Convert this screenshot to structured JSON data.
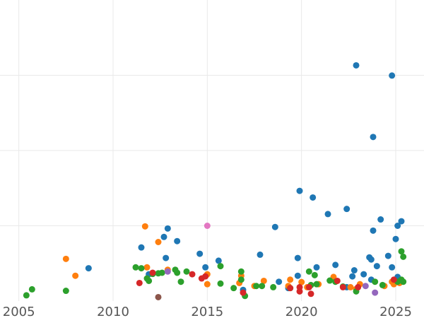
{
  "chart_data": {
    "type": "scatter",
    "title": "",
    "xlabel": "",
    "ylabel": "",
    "xlim": [
      2004.0,
      2026.5
    ],
    "ylim": [
      0,
      100
    ],
    "x_ticks": [
      2005,
      2010,
      2015,
      2020,
      2025
    ],
    "y_grid": [
      25,
      50,
      75
    ],
    "grid": true,
    "legend": "none",
    "x_tick_labels": [
      "2005",
      "2010",
      "2015",
      "2020",
      "2025"
    ],
    "series": [
      {
        "color": "#1f77b4",
        "points": [
          [
            2008.7,
            10.9
          ],
          [
            2011.5,
            17.8
          ],
          [
            2011.9,
            8.9
          ],
          [
            2012.8,
            14.3
          ],
          [
            2012.9,
            24.1
          ],
          [
            2012.7,
            21.3
          ],
          [
            2013.4,
            19.9
          ],
          [
            2014.6,
            15.7
          ],
          [
            2014.9,
            11.2
          ],
          [
            2015.6,
            13.4
          ],
          [
            2016.9,
            3.7
          ],
          [
            2017.8,
            15.4
          ],
          [
            2018.6,
            24.6
          ],
          [
            2018.8,
            6.4
          ],
          [
            2019.3,
            4.3
          ],
          [
            2019.8,
            14.3
          ],
          [
            2019.8,
            8.4
          ],
          [
            2019.9,
            36.6
          ],
          [
            2020.6,
            34.4
          ],
          [
            2020.8,
            11.2
          ],
          [
            2021.4,
            28.9
          ],
          [
            2021.8,
            12.0
          ],
          [
            2022.4,
            30.6
          ],
          [
            2022.4,
            4.6
          ],
          [
            2022.8,
            10.2
          ],
          [
            2022.7,
            8.2
          ],
          [
            2022.9,
            78.3
          ],
          [
            2023.3,
            8.9
          ],
          [
            2023.6,
            14.5
          ],
          [
            2023.7,
            13.8
          ],
          [
            2023.7,
            7.1
          ],
          [
            2023.8,
            23.4
          ],
          [
            2023.8,
            54.5
          ],
          [
            2024.0,
            11.6
          ],
          [
            2024.2,
            27.1
          ],
          [
            2024.6,
            15.0
          ],
          [
            2024.8,
            11.2
          ],
          [
            2024.8,
            74.9
          ],
          [
            2025.0,
            20.6
          ],
          [
            2025.1,
            25.0
          ],
          [
            2025.1,
            8.0
          ],
          [
            2025.3,
            26.5
          ]
        ]
      },
      {
        "color": "#ff7f0e",
        "points": [
          [
            2007.5,
            14.0
          ],
          [
            2008.0,
            8.4
          ],
          [
            2011.7,
            24.8
          ],
          [
            2011.8,
            11.2
          ],
          [
            2012.4,
            19.6
          ],
          [
            2012.9,
            10.4
          ],
          [
            2015.0,
            8.9
          ],
          [
            2015.0,
            5.6
          ],
          [
            2016.7,
            6.0
          ],
          [
            2016.8,
            8.4
          ],
          [
            2017.5,
            5.0
          ],
          [
            2018.0,
            6.7
          ],
          [
            2019.4,
            7.1
          ],
          [
            2019.3,
            5.0
          ],
          [
            2020.0,
            6.3
          ],
          [
            2020.3,
            4.6
          ],
          [
            2020.9,
            5.6
          ],
          [
            2021.7,
            8.0
          ],
          [
            2022.6,
            4.6
          ],
          [
            2022.9,
            4.0
          ],
          [
            2023.1,
            5.6
          ],
          [
            2024.4,
            5.0
          ],
          [
            2024.8,
            6.4
          ],
          [
            2024.9,
            5.6
          ],
          [
            2025.2,
            6.0
          ]
        ]
      },
      {
        "color": "#2ca02c",
        "points": [
          [
            2005.4,
            1.9
          ],
          [
            2005.7,
            3.9
          ],
          [
            2007.5,
            3.4
          ],
          [
            2011.2,
            11.2
          ],
          [
            2011.5,
            10.9
          ],
          [
            2011.8,
            7.5
          ],
          [
            2011.9,
            6.7
          ],
          [
            2012.1,
            9.0
          ],
          [
            2012.4,
            9.2
          ],
          [
            2012.6,
            9.4
          ],
          [
            2013.3,
            10.4
          ],
          [
            2013.4,
            9.4
          ],
          [
            2013.6,
            6.4
          ],
          [
            2013.9,
            9.8
          ],
          [
            2015.7,
            5.8
          ],
          [
            2015.7,
            11.6
          ],
          [
            2016.4,
            4.3
          ],
          [
            2016.8,
            7.1
          ],
          [
            2016.8,
            9.8
          ],
          [
            2017.0,
            1.7
          ],
          [
            2017.6,
            5.0
          ],
          [
            2017.9,
            5.0
          ],
          [
            2018.5,
            4.6
          ],
          [
            2019.4,
            4.3
          ],
          [
            2020.4,
            9.8
          ],
          [
            2020.5,
            5.3
          ],
          [
            2020.7,
            8.6
          ],
          [
            2020.8,
            5.6
          ],
          [
            2021.5,
            6.8
          ],
          [
            2021.8,
            6.4
          ],
          [
            2022.2,
            4.8
          ],
          [
            2022.9,
            3.2
          ],
          [
            2023.9,
            6.4
          ],
          [
            2024.3,
            5.3
          ],
          [
            2025.1,
            6.4
          ],
          [
            2025.3,
            16.5
          ],
          [
            2025.3,
            7.1
          ],
          [
            2025.4,
            6.4
          ],
          [
            2025.4,
            14.7
          ]
        ]
      },
      {
        "color": "#d62728",
        "points": [
          [
            2011.4,
            6.0
          ],
          [
            2012.1,
            9.4
          ],
          [
            2014.2,
            8.9
          ],
          [
            2014.7,
            7.5
          ],
          [
            2014.9,
            8.2
          ],
          [
            2016.9,
            2.8
          ],
          [
            2019.4,
            4.3
          ],
          [
            2019.9,
            3.2
          ],
          [
            2019.9,
            4.6
          ],
          [
            2020.5,
            2.4
          ],
          [
            2020.4,
            4.6
          ],
          [
            2021.9,
            6.7
          ],
          [
            2022.2,
            4.6
          ],
          [
            2023.0,
            4.6
          ],
          [
            2024.9,
            7.1
          ]
        ]
      },
      {
        "color": "#9467bd",
        "points": [
          [
            2012.9,
            9.8
          ],
          [
            2023.4,
            5.0
          ],
          [
            2023.9,
            2.8
          ]
        ]
      },
      {
        "color": "#8c564b",
        "points": [
          [
            2012.4,
            1.3
          ]
        ]
      },
      {
        "color": "#e377c2",
        "points": [
          [
            2015.0,
            25.0
          ]
        ]
      }
    ]
  }
}
